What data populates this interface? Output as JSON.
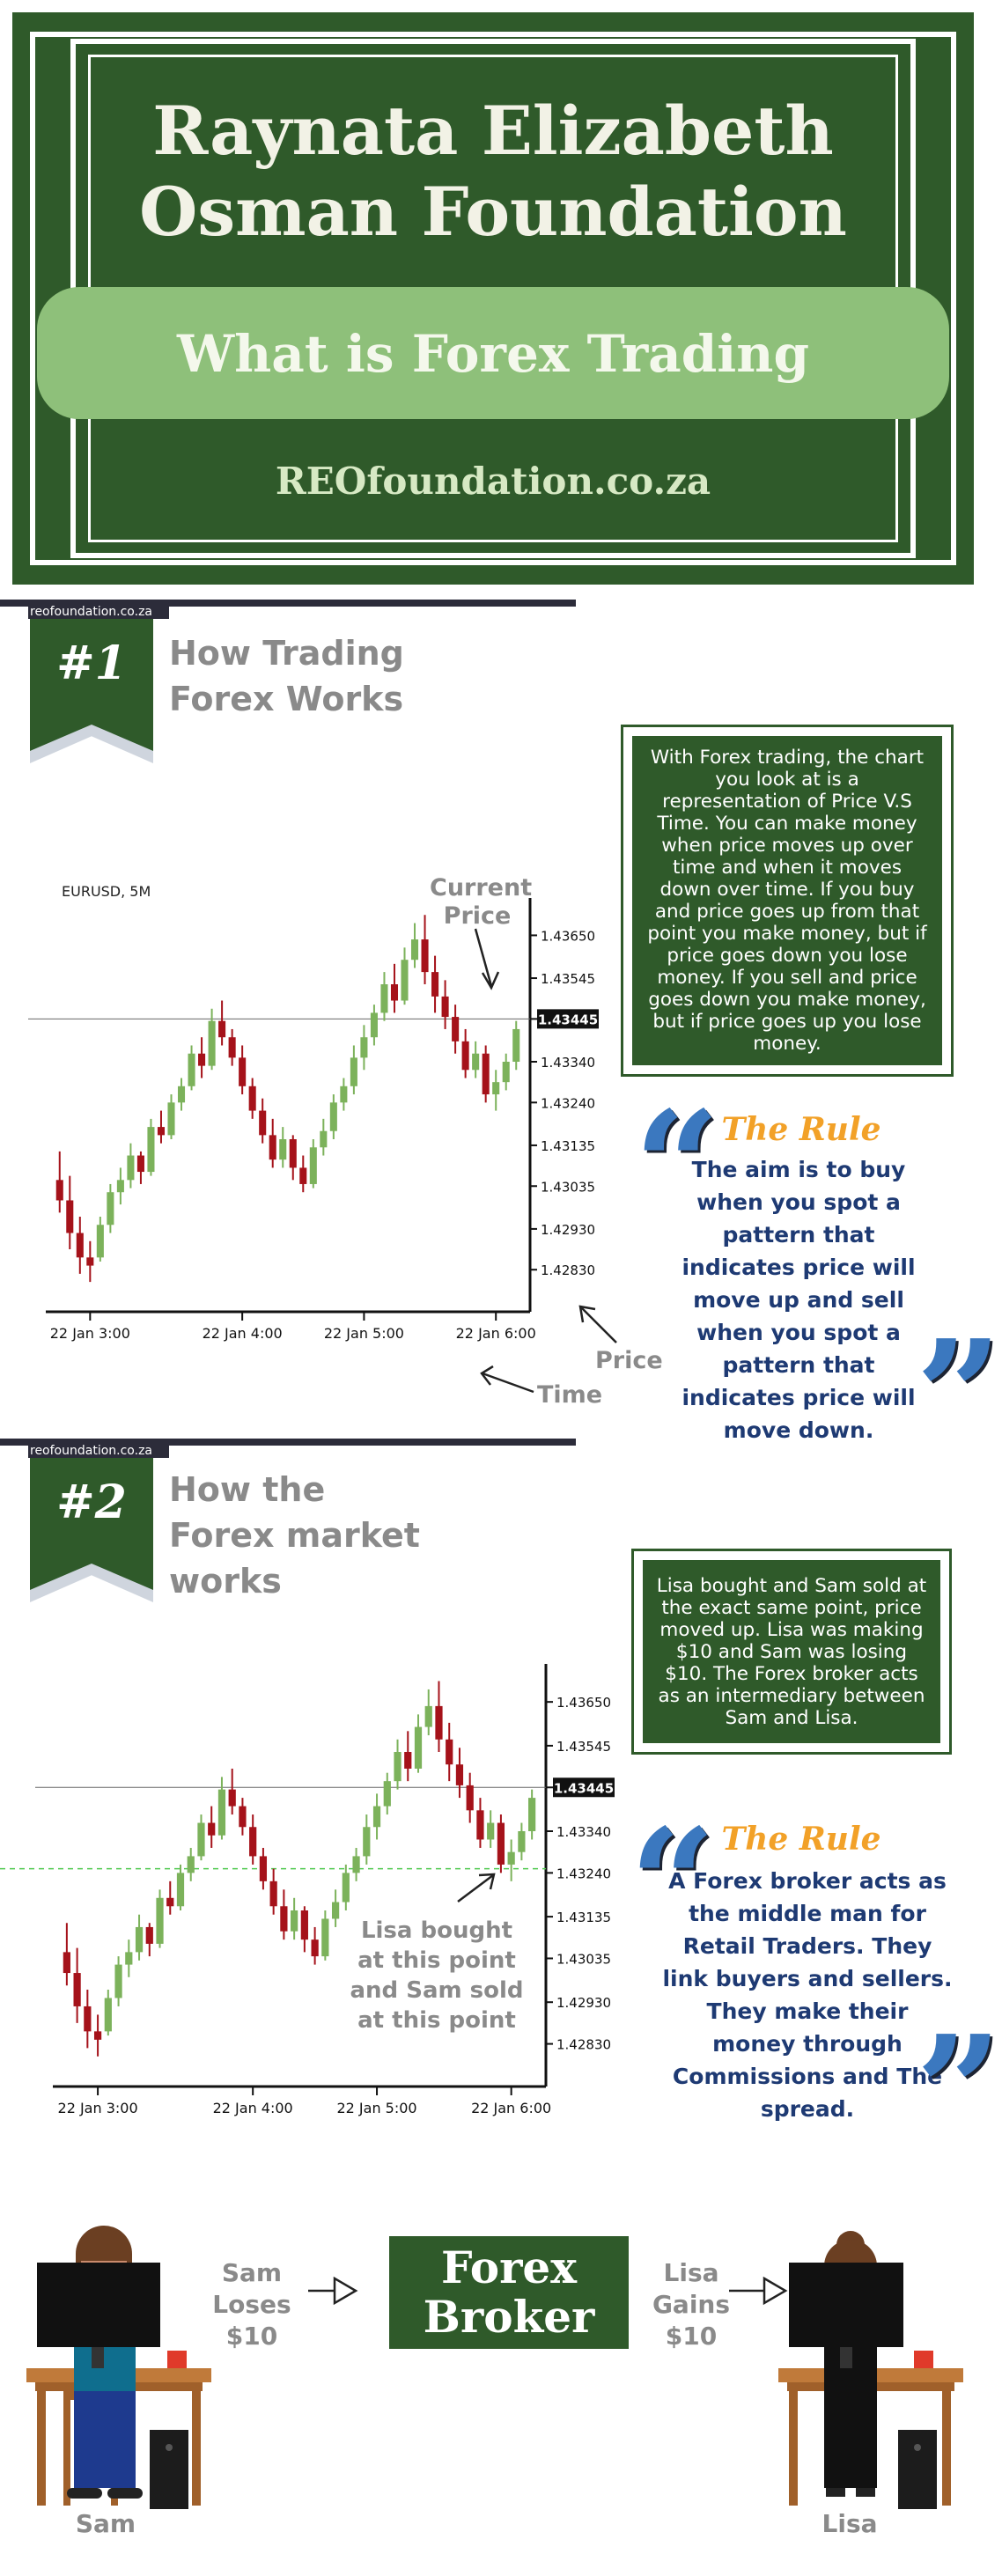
{
  "header": {
    "title_line1": "Raynata Elizabeth",
    "title_line2": "Osman Foundation",
    "subtitle": "What is Forex Trading",
    "website": "REOfoundation.co.za"
  },
  "section1": {
    "url": "reofoundation.co.za",
    "number": "#1",
    "title": "How Trading Forex Works",
    "info": "With Forex trading, the chart you look at is a representation of Price V.S Time. You can make money when price moves up over time and when it moves down over time. If you buy and price goes up from that point you make money, but if price goes down you lose money. If you sell and price goes down you make money, but if price goes up you lose money.",
    "rule_title": "The Rule",
    "rule_text": "The aim is to buy when you spot a pattern that indicates price will move up and sell when you spot a pattern that indicates price will move down.",
    "annotations": {
      "current_price": "Current Price",
      "price": "Price",
      "time": "Time"
    }
  },
  "section2": {
    "url": "reofoundation.co.za",
    "number": "#2",
    "title": "How the Forex market works",
    "info": "Lisa bought and Sam sold at the exact same point, price moved up. Lisa was making $10 and Sam was losing $10. The Forex broker acts as an intermediary between Sam and Lisa.",
    "rule_title": "The Rule",
    "rule_text": "A Forex broker acts as the middle man for Retail Traders. They link buyers and sellers. They make their money through Commissions and The spread.",
    "annotation": "Lisa bought at this point and Sam sold at this point"
  },
  "bottom": {
    "sam_label": "Sam Loses $10",
    "broker_label": "Forex Broker",
    "lisa_label": "Lisa Gains $10",
    "sam_name": "Sam",
    "lisa_name": "Lisa"
  },
  "colors": {
    "dark_green": "#2f5a2a",
    "light_green": "#8ec07a",
    "candle_up": "#7cb25b",
    "candle_down": "#a5121a",
    "rule_orange": "#f2a128",
    "rule_blue": "#1e3a73",
    "quote_blue": "#3b78bf"
  },
  "chart_data": [
    {
      "type": "candlestick",
      "symbol_label": "EURUSD, 5M",
      "x_tick_labels": [
        "22 Jan 3:00",
        "22 Jan 4:00",
        "22 Jan 5:00",
        "22 Jan 6:00"
      ],
      "y_tick_labels": [
        "1.43650",
        "1.43545",
        "1.43445",
        "1.43340",
        "1.43240",
        "1.43135",
        "1.43035",
        "1.42930",
        "1.42830"
      ],
      "current_price_label": "1.43445",
      "current_price": 1.43445,
      "ylim": [
        1.4277,
        1.4372
      ],
      "candles": [
        {
          "o": 1.4305,
          "h": 1.4312,
          "l": 1.4297,
          "c": 1.43
        },
        {
          "o": 1.43,
          "h": 1.4306,
          "l": 1.4288,
          "c": 1.4292
        },
        {
          "o": 1.4292,
          "h": 1.4296,
          "l": 1.4282,
          "c": 1.4286
        },
        {
          "o": 1.4286,
          "h": 1.429,
          "l": 1.428,
          "c": 1.4284
        },
        {
          "o": 1.4286,
          "h": 1.4296,
          "l": 1.4285,
          "c": 1.4294
        },
        {
          "o": 1.4294,
          "h": 1.4304,
          "l": 1.4292,
          "c": 1.4302
        },
        {
          "o": 1.4302,
          "h": 1.4308,
          "l": 1.4299,
          "c": 1.4305
        },
        {
          "o": 1.4305,
          "h": 1.4314,
          "l": 1.4303,
          "c": 1.4311
        },
        {
          "o": 1.4311,
          "h": 1.4312,
          "l": 1.4304,
          "c": 1.4307
        },
        {
          "o": 1.4307,
          "h": 1.432,
          "l": 1.4306,
          "c": 1.4318
        },
        {
          "o": 1.4318,
          "h": 1.4322,
          "l": 1.4314,
          "c": 1.4316
        },
        {
          "o": 1.4316,
          "h": 1.4326,
          "l": 1.4315,
          "c": 1.4324
        },
        {
          "o": 1.4324,
          "h": 1.433,
          "l": 1.4322,
          "c": 1.4328
        },
        {
          "o": 1.4328,
          "h": 1.4338,
          "l": 1.4327,
          "c": 1.4336
        },
        {
          "o": 1.4336,
          "h": 1.434,
          "l": 1.433,
          "c": 1.4333
        },
        {
          "o": 1.4333,
          "h": 1.4347,
          "l": 1.4332,
          "c": 1.4344
        },
        {
          "o": 1.4344,
          "h": 1.4349,
          "l": 1.4338,
          "c": 1.434
        },
        {
          "o": 1.434,
          "h": 1.4342,
          "l": 1.4333,
          "c": 1.4335
        },
        {
          "o": 1.4335,
          "h": 1.4338,
          "l": 1.4326,
          "c": 1.4328
        },
        {
          "o": 1.4328,
          "h": 1.433,
          "l": 1.432,
          "c": 1.4322
        },
        {
          "o": 1.4322,
          "h": 1.4325,
          "l": 1.4314,
          "c": 1.4316
        },
        {
          "o": 1.4316,
          "h": 1.432,
          "l": 1.4308,
          "c": 1.431
        },
        {
          "o": 1.431,
          "h": 1.4318,
          "l": 1.4308,
          "c": 1.4315
        },
        {
          "o": 1.4315,
          "h": 1.4316,
          "l": 1.4305,
          "c": 1.4308
        },
        {
          "o": 1.4308,
          "h": 1.4311,
          "l": 1.4302,
          "c": 1.4304
        },
        {
          "o": 1.4304,
          "h": 1.4315,
          "l": 1.4303,
          "c": 1.4313
        },
        {
          "o": 1.4313,
          "h": 1.432,
          "l": 1.4311,
          "c": 1.4317
        },
        {
          "o": 1.4317,
          "h": 1.4326,
          "l": 1.4315,
          "c": 1.4324
        },
        {
          "o": 1.4324,
          "h": 1.433,
          "l": 1.4322,
          "c": 1.4328
        },
        {
          "o": 1.4328,
          "h": 1.4338,
          "l": 1.4326,
          "c": 1.4335
        },
        {
          "o": 1.4335,
          "h": 1.4343,
          "l": 1.4332,
          "c": 1.434
        },
        {
          "o": 1.434,
          "h": 1.4348,
          "l": 1.4338,
          "c": 1.4346
        },
        {
          "o": 1.4346,
          "h": 1.4356,
          "l": 1.4344,
          "c": 1.4353
        },
        {
          "o": 1.4353,
          "h": 1.4358,
          "l": 1.4346,
          "c": 1.4349
        },
        {
          "o": 1.4349,
          "h": 1.4362,
          "l": 1.4348,
          "c": 1.4359
        },
        {
          "o": 1.4359,
          "h": 1.4368,
          "l": 1.4357,
          "c": 1.4364
        },
        {
          "o": 1.4364,
          "h": 1.437,
          "l": 1.4353,
          "c": 1.4356
        },
        {
          "o": 1.4356,
          "h": 1.436,
          "l": 1.4346,
          "c": 1.435
        },
        {
          "o": 1.435,
          "h": 1.4354,
          "l": 1.4342,
          "c": 1.4345
        },
        {
          "o": 1.4345,
          "h": 1.4348,
          "l": 1.4336,
          "c": 1.4339
        },
        {
          "o": 1.4339,
          "h": 1.4342,
          "l": 1.433,
          "c": 1.4332
        },
        {
          "o": 1.4332,
          "h": 1.4339,
          "l": 1.433,
          "c": 1.4336
        },
        {
          "o": 1.4336,
          "h": 1.4338,
          "l": 1.4324,
          "c": 1.4326
        },
        {
          "o": 1.4326,
          "h": 1.4332,
          "l": 1.4322,
          "c": 1.4329
        },
        {
          "o": 1.4329,
          "h": 1.4336,
          "l": 1.4327,
          "c": 1.4334
        },
        {
          "o": 1.4334,
          "h": 1.4344,
          "l": 1.4332,
          "c": 1.4342
        }
      ]
    },
    {
      "type": "candlestick",
      "x_tick_labels": [
        "22 Jan 3:00",
        "22 Jan 4:00",
        "22 Jan 5:00",
        "22 Jan 6:00"
      ],
      "y_tick_labels": [
        "1.43650",
        "1.43545",
        "1.43445",
        "1.43340",
        "1.43240",
        "1.43135",
        "1.43035",
        "1.42930",
        "1.42830"
      ],
      "current_price_label": "1.43445",
      "current_price": 1.43445,
      "entry_price": 1.4325,
      "ylim": [
        1.4277,
        1.4372
      ],
      "same_candles_as_chart": 0
    }
  ]
}
